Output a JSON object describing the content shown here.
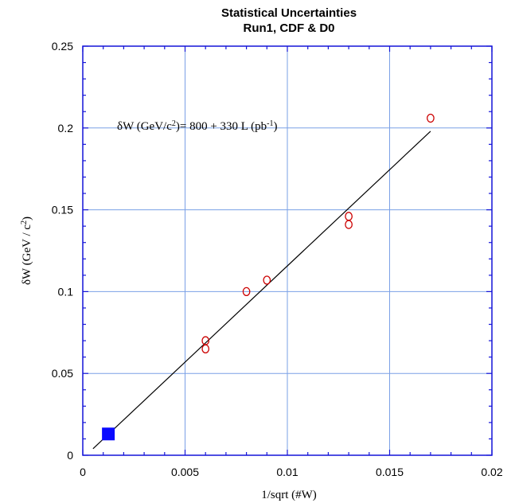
{
  "chart_data": {
    "type": "scatter",
    "title_line1": "Statistical Uncertainties",
    "title_line2": "Run1, CDF & D0",
    "xlabel": "1/sqrt (#W)",
    "ylabel_main": "δW (GeV / c",
    "ylabel_sup": "2",
    "ylabel_close": ")",
    "xlim": [
      0,
      0.02
    ],
    "ylim": [
      0,
      0.25
    ],
    "x_ticks": [
      0,
      0.005,
      0.01,
      0.015,
      0.02
    ],
    "x_tick_labels": [
      "0",
      "0.005",
      "0.01",
      "0.015",
      "0.02"
    ],
    "y_ticks": [
      0,
      0.05,
      0.1,
      0.15,
      0.2,
      0.25
    ],
    "y_tick_labels": [
      "0",
      "0.05",
      "0.1",
      "0.15",
      "0.2",
      "0.25"
    ],
    "grid": true,
    "annotation": {
      "part1": "δW (GeV/c",
      "sup1": "2",
      "part2": ")= 800 + 330 L (pb",
      "sup2": "-1",
      "part3": ")"
    },
    "series": [
      {
        "marker": "open-circle",
        "color": "#cc0000",
        "points": [
          {
            "x": 0.006,
            "y": 0.07
          },
          {
            "x": 0.006,
            "y": 0.065
          },
          {
            "x": 0.008,
            "y": 0.1
          },
          {
            "x": 0.009,
            "y": 0.107
          },
          {
            "x": 0.013,
            "y": 0.146
          },
          {
            "x": 0.013,
            "y": 0.141
          },
          {
            "x": 0.017,
            "y": 0.206
          }
        ]
      },
      {
        "marker": "filled-square",
        "color": "#0a0aff",
        "points": [
          {
            "x": 0.00125,
            "y": 0.013
          }
        ]
      }
    ],
    "fit_line": {
      "color": "#000000",
      "x_start": 0.0005,
      "y_start": 0.004,
      "x_end": 0.017,
      "y_end": 0.198
    }
  }
}
